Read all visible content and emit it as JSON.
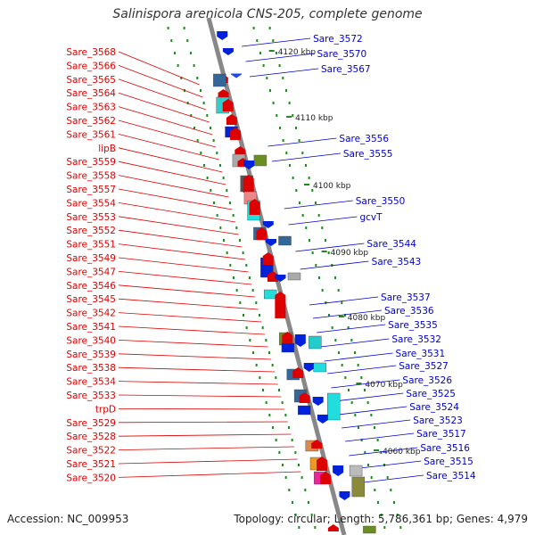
{
  "title": "Salinispora arenicola CNS-205, complete genome",
  "footer": {
    "accession": "Accession: NC_009953",
    "topology": "Topology: circular; Length: 5,786,361 bp; Genes: 4,979"
  },
  "colors": {
    "left_label": "#dd0000",
    "right_label": "#0000cc",
    "backbone": "#888888",
    "tick": "#228822",
    "ruler_text": "#222222"
  },
  "ruler": [
    "4120 kbp",
    "4110 kbp",
    "4100 kbp",
    "4090 kbp",
    "4080 kbp",
    "4070 kbp",
    "4060 kbp"
  ],
  "left_labels": [
    "Sare_3568",
    "Sare_3566",
    "Sare_3565",
    "Sare_3564",
    "Sare_3563",
    "Sare_3562",
    "Sare_3561",
    "lipB",
    "Sare_3559",
    "Sare_3558",
    "Sare_3557",
    "Sare_3554",
    "Sare_3553",
    "Sare_3552",
    "Sare_3551",
    "Sare_3549",
    "Sare_3547",
    "Sare_3546",
    "Sare_3545",
    "Sare_3542",
    "Sare_3541",
    "Sare_3540",
    "Sare_3539",
    "Sare_3538",
    "Sare_3534",
    "Sare_3533",
    "trpD",
    "Sare_3529",
    "Sare_3528",
    "Sare_3522",
    "Sare_3521",
    "Sare_3520"
  ],
  "right_labels": [
    "Sare_3572",
    "Sare_3570",
    "Sare_3567",
    "Sare_3556",
    "Sare_3555",
    "Sare_3550",
    "gcvT",
    "Sare_3544",
    "Sare_3543",
    "Sare_3537",
    "Sare_3536",
    "Sare_3535",
    "Sare_3532",
    "Sare_3531",
    "Sare_3527",
    "Sare_3526",
    "Sare_3525",
    "Sare_3524",
    "Sare_3523",
    "Sare_3517",
    "Sare_3516",
    "Sare_3515",
    "Sare_3514"
  ]
}
